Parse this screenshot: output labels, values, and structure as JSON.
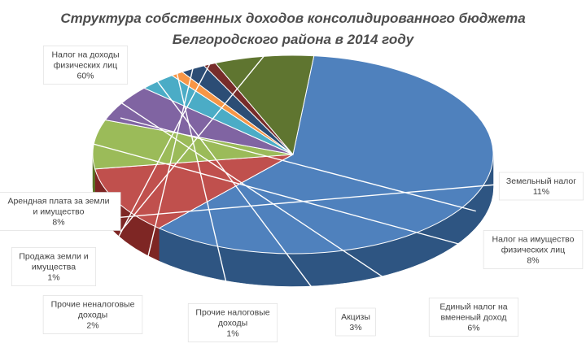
{
  "chart_data": {
    "type": "pie",
    "title": [
      "Структура собственных доходов  консолидированного бюджета",
      "Белгородского района в 2014 году"
    ],
    "slices": [
      {
        "label": [
          "Налог на доходы",
          "физических лиц",
          "60%"
        ],
        "value": 60,
        "color": "#4f81bd",
        "side": "#2e5582"
      },
      {
        "label": [
          "Земельный налог",
          "11%"
        ],
        "value": 11,
        "color": "#c0504d",
        "side": "#7e2624"
      },
      {
        "label": [
          "Налог на имущество",
          "физических лиц",
          "8%"
        ],
        "value": 8,
        "color": "#9bbb59",
        "side": "#5b7426"
      },
      {
        "label": [
          "Единый  налог на",
          "вмененый доход",
          "6%"
        ],
        "value": 6,
        "color": "#8064a2",
        "side": "#4d3868"
      },
      {
        "label": [
          "Акцизы",
          "3%"
        ],
        "value": 3,
        "color": "#4bacc6",
        "side": "#23697d"
      },
      {
        "label": [
          "Прочие налоговые",
          "доходы",
          "1%"
        ],
        "value": 1,
        "color": "#f79646",
        "side": "#b05a14"
      },
      {
        "label": [
          "Прочие неналоговые",
          "доходы",
          "2%"
        ],
        "value": 2,
        "color": "#2c4d75",
        "side": "#172a42"
      },
      {
        "label": [
          "Продажа земли и",
          "имущества",
          "1%"
        ],
        "value": 1,
        "color": "#772c2a",
        "side": "#421615"
      },
      {
        "label": [
          "Арендная плата за земли",
          "и имущество",
          "8%"
        ],
        "value": 8,
        "color": "#5f7530",
        "side": "#3a491b"
      }
    ],
    "legend": "none"
  }
}
